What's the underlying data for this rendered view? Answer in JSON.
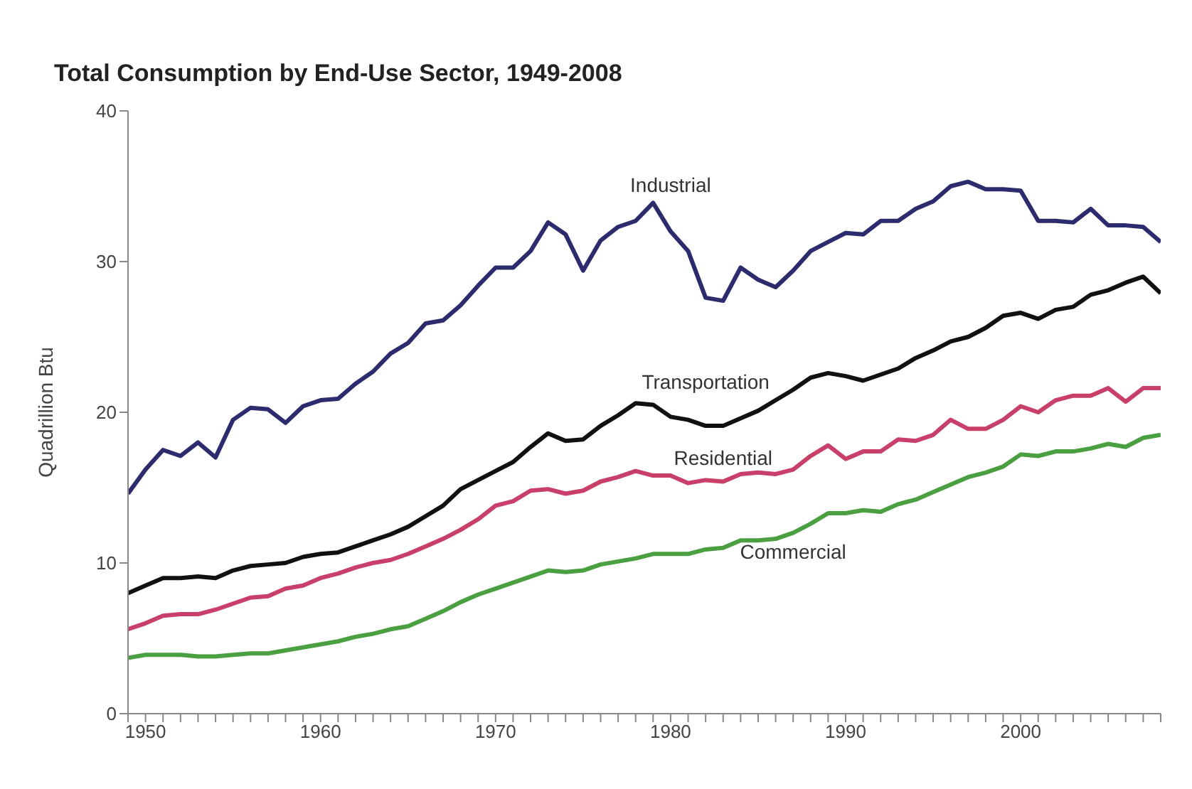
{
  "chart_data": {
    "type": "line",
    "title": "Total Consumption by End-Use Sector, 1949-2008",
    "ylabel": "Quadrillion Btu",
    "x": [
      1949,
      1950,
      1951,
      1952,
      1953,
      1954,
      1955,
      1956,
      1957,
      1958,
      1959,
      1960,
      1961,
      1962,
      1963,
      1964,
      1965,
      1966,
      1967,
      1968,
      1969,
      1970,
      1971,
      1972,
      1973,
      1974,
      1975,
      1976,
      1977,
      1978,
      1979,
      1980,
      1981,
      1982,
      1983,
      1984,
      1985,
      1986,
      1987,
      1988,
      1989,
      1990,
      1991,
      1992,
      1993,
      1994,
      1995,
      1996,
      1997,
      1998,
      1999,
      2000,
      2001,
      2002,
      2003,
      2004,
      2005,
      2006,
      2007,
      2008
    ],
    "series": [
      {
        "name": "Industrial",
        "color": "#2b2b6e",
        "values": [
          14.6,
          16.2,
          17.5,
          17.1,
          18.0,
          17.0,
          19.5,
          20.3,
          20.2,
          19.3,
          20.4,
          20.8,
          20.9,
          21.9,
          22.7,
          23.9,
          24.6,
          25.9,
          26.1,
          27.1,
          28.4,
          29.6,
          29.6,
          30.7,
          32.6,
          31.8,
          29.4,
          31.4,
          32.3,
          32.7,
          33.9,
          32.0,
          30.7,
          27.6,
          27.4,
          29.6,
          28.8,
          28.3,
          29.4,
          30.7,
          31.3,
          31.9,
          31.8,
          32.7,
          32.7,
          33.5,
          34.0,
          35.0,
          35.3,
          34.8,
          34.8,
          34.7,
          32.7,
          32.7,
          32.6,
          33.5,
          32.4,
          32.4,
          32.3,
          31.3
        ]
      },
      {
        "name": "Transportation",
        "color": "#111111",
        "values": [
          8.0,
          8.5,
          9.0,
          9.0,
          9.1,
          9.0,
          9.5,
          9.8,
          9.9,
          10.0,
          10.4,
          10.6,
          10.7,
          11.1,
          11.5,
          11.9,
          12.4,
          13.1,
          13.8,
          14.9,
          15.5,
          16.1,
          16.7,
          17.7,
          18.6,
          18.1,
          18.2,
          19.1,
          19.8,
          20.6,
          20.5,
          19.7,
          19.5,
          19.1,
          19.1,
          19.6,
          20.1,
          20.8,
          21.5,
          22.3,
          22.6,
          22.4,
          22.1,
          22.5,
          22.9,
          23.6,
          24.1,
          24.7,
          25.0,
          25.6,
          26.4,
          26.6,
          26.2,
          26.8,
          27.0,
          27.8,
          28.1,
          28.6,
          29.0,
          27.9
        ]
      },
      {
        "name": "Residential",
        "color": "#c8406a",
        "values": [
          5.6,
          6.0,
          6.5,
          6.6,
          6.6,
          6.9,
          7.3,
          7.7,
          7.8,
          8.3,
          8.5,
          9.0,
          9.3,
          9.7,
          10.0,
          10.2,
          10.6,
          11.1,
          11.6,
          12.2,
          12.9,
          13.8,
          14.1,
          14.8,
          14.9,
          14.6,
          14.8,
          15.4,
          15.7,
          16.1,
          15.8,
          15.8,
          15.3,
          15.5,
          15.4,
          15.9,
          16.0,
          15.9,
          16.2,
          17.1,
          17.8,
          16.9,
          17.4,
          17.4,
          18.2,
          18.1,
          18.5,
          19.5,
          18.9,
          18.9,
          19.5,
          20.4,
          20.0,
          20.8,
          21.1,
          21.1,
          21.6,
          20.7,
          21.6,
          21.6
        ]
      },
      {
        "name": "Commercial",
        "color": "#4aa040",
        "values": [
          3.7,
          3.9,
          3.9,
          3.9,
          3.8,
          3.8,
          3.9,
          4.0,
          4.0,
          4.2,
          4.4,
          4.6,
          4.8,
          5.1,
          5.3,
          5.6,
          5.8,
          6.3,
          6.8,
          7.4,
          7.9,
          8.3,
          8.7,
          9.1,
          9.5,
          9.4,
          9.5,
          9.9,
          10.1,
          10.3,
          10.6,
          10.6,
          10.6,
          10.9,
          11.0,
          11.5,
          11.5,
          11.6,
          12.0,
          12.6,
          13.3,
          13.3,
          13.5,
          13.4,
          13.9,
          14.2,
          14.7,
          15.2,
          15.7,
          16.0,
          16.4,
          17.2,
          17.1,
          17.4,
          17.4,
          17.6,
          17.9,
          17.7,
          18.3,
          18.5
        ]
      }
    ],
    "xlim": [
      1949,
      2008
    ],
    "xticks": [
      {
        "value": 1949,
        "label": null
      },
      1950,
      {
        "value": 1951,
        "label": null
      },
      {
        "value": 1952,
        "label": null
      },
      {
        "value": 1953,
        "label": null
      },
      {
        "value": 1954,
        "label": null
      },
      {
        "value": 1955,
        "label": null
      },
      {
        "value": 1956,
        "label": null
      },
      {
        "value": 1957,
        "label": null
      },
      {
        "value": 1958,
        "label": null
      },
      {
        "value": 1959,
        "label": null
      },
      1960,
      {
        "value": 1961,
        "label": null
      },
      {
        "value": 1962,
        "label": null
      },
      {
        "value": 1963,
        "label": null
      },
      {
        "value": 1964,
        "label": null
      },
      {
        "value": 1965,
        "label": null
      },
      {
        "value": 1966,
        "label": null
      },
      {
        "value": 1967,
        "label": null
      },
      {
        "value": 1968,
        "label": null
      },
      {
        "value": 1969,
        "label": null
      },
      1970,
      {
        "value": 1971,
        "label": null
      },
      {
        "value": 1972,
        "label": null
      },
      {
        "value": 1973,
        "label": null
      },
      {
        "value": 1974,
        "label": null
      },
      {
        "value": 1975,
        "label": null
      },
      {
        "value": 1976,
        "label": null
      },
      {
        "value": 1977,
        "label": null
      },
      {
        "value": 1978,
        "label": null
      },
      {
        "value": 1979,
        "label": null
      },
      1980,
      {
        "value": 1981,
        "label": null
      },
      {
        "value": 1982,
        "label": null
      },
      {
        "value": 1983,
        "label": null
      },
      {
        "value": 1984,
        "label": null
      },
      {
        "value": 1985,
        "label": null
      },
      {
        "value": 1986,
        "label": null
      },
      {
        "value": 1987,
        "label": null
      },
      {
        "value": 1988,
        "label": null
      },
      {
        "value": 1989,
        "label": null
      },
      1990,
      {
        "value": 1991,
        "label": null
      },
      {
        "value": 1992,
        "label": null
      },
      {
        "value": 1993,
        "label": null
      },
      {
        "value": 1994,
        "label": null
      },
      {
        "value": 1995,
        "label": null
      },
      {
        "value": 1996,
        "label": null
      },
      {
        "value": 1997,
        "label": null
      },
      {
        "value": 1998,
        "label": null
      },
      {
        "value": 1999,
        "label": null
      },
      2000,
      {
        "value": 2001,
        "label": null
      },
      {
        "value": 2002,
        "label": null
      },
      {
        "value": 2003,
        "label": null
      },
      {
        "value": 2004,
        "label": null
      },
      {
        "value": 2005,
        "label": null
      },
      {
        "value": 2006,
        "label": null
      },
      {
        "value": 2007,
        "label": null
      },
      {
        "value": 2008,
        "label": null
      }
    ],
    "ylim": [
      0,
      40
    ],
    "yticks": [
      0,
      10,
      20,
      30,
      40
    ],
    "grid": false,
    "legend": false,
    "line_style": "solid",
    "marker": "none"
  }
}
